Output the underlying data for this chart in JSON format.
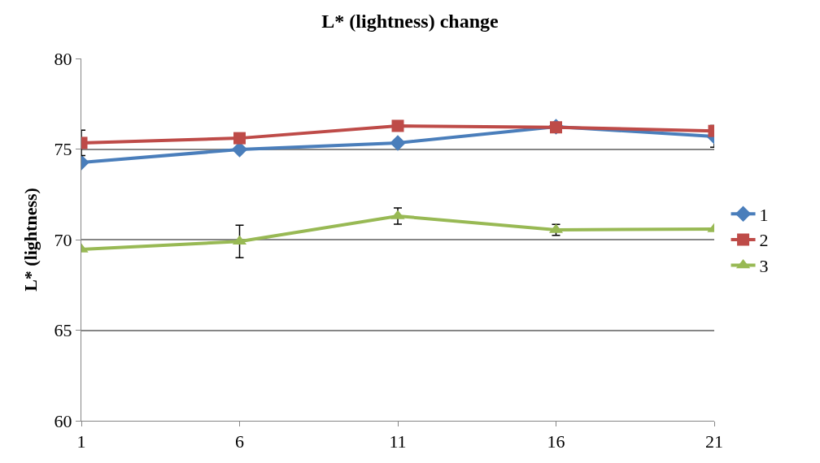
{
  "chart_data": {
    "type": "line",
    "title": "L* (lightness) change",
    "ylabel": "L* (lightness)",
    "x": [
      1,
      6,
      11,
      16,
      21
    ],
    "xlim": [
      1,
      21
    ],
    "xticks": [
      1,
      6,
      11,
      16,
      21
    ],
    "ylim": [
      60,
      80
    ],
    "yticks": [
      60,
      65,
      70,
      75,
      80
    ],
    "grid": "y",
    "legend": "right",
    "line_style": "solid",
    "series": [
      {
        "name": "1",
        "color": "#4a7ebb",
        "marker": "diamond",
        "values": [
          74.26,
          74.98,
          75.34,
          76.23,
          75.7
        ],
        "errors": [
          null,
          null,
          null,
          null,
          0.6
        ]
      },
      {
        "name": "2",
        "color": "#be4b48",
        "marker": "square",
        "values": [
          75.34,
          75.6,
          76.28,
          76.2,
          76.0
        ],
        "errors": [
          0.7,
          null,
          null,
          null,
          null
        ]
      },
      {
        "name": "3",
        "color": "#98b954",
        "marker": "triangle",
        "values": [
          69.46,
          69.9,
          71.3,
          70.54,
          70.58
        ],
        "errors": [
          null,
          0.9,
          0.45,
          0.3,
          null
        ]
      }
    ]
  }
}
